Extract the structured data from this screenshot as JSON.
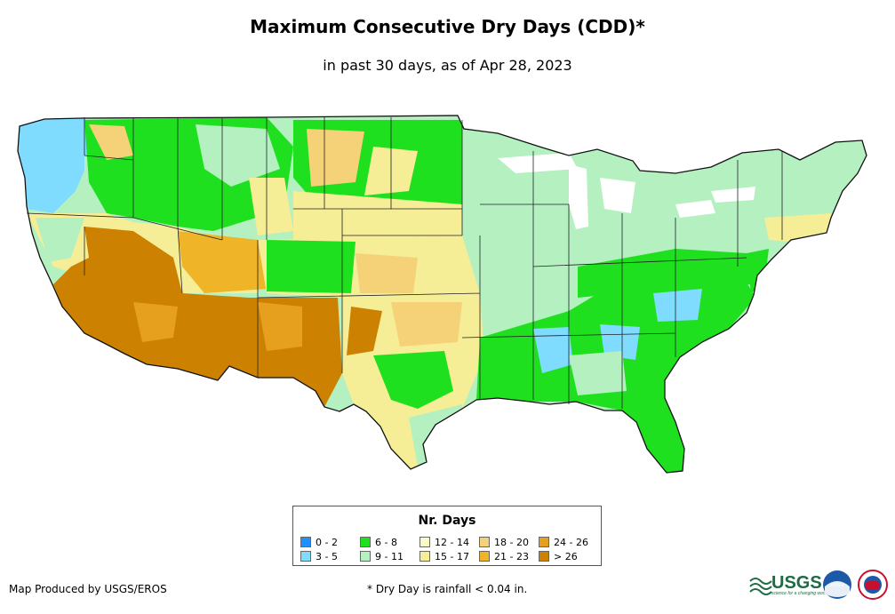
{
  "title": "Maximum Consecutive Dry Days (CDD)*",
  "subtitle": "in past 30 days, as of Apr 28, 2023",
  "legend": {
    "title": "Nr. Days",
    "items": [
      {
        "label": "0 - 2",
        "color": "#1e90ff"
      },
      {
        "label": "3 - 5",
        "color": "#7fdcff"
      },
      {
        "label": "6 - 8",
        "color": "#1ee01e"
      },
      {
        "label": "9 - 11",
        "color": "#b4f0c0"
      },
      {
        "label": "12 - 14",
        "color": "#fafac8"
      },
      {
        "label": "15 - 17",
        "color": "#f5ee96"
      },
      {
        "label": "18 - 20",
        "color": "#f5d278"
      },
      {
        "label": "21 - 23",
        "color": "#f0b428"
      },
      {
        "label": "24 - 26",
        "color": "#e6a01e"
      },
      {
        "label": "> 26",
        "color": "#cc8200"
      }
    ]
  },
  "footer": {
    "credit": "Map Produced by USGS/EROS",
    "note": "* Dry Day is rainfall < 0.04 in."
  },
  "logos": {
    "usgs_text": "USGS",
    "usgs_tagline": "science for a changing world",
    "noaa_text": "noaa"
  }
}
